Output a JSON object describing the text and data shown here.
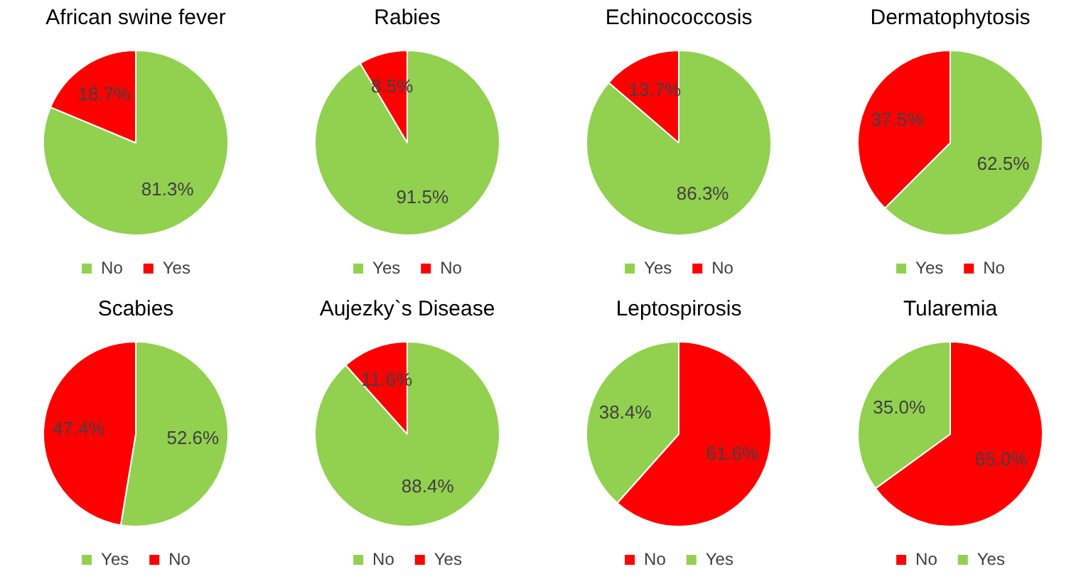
{
  "chart_data": [
    {
      "type": "pie",
      "title": "African swine fever",
      "categories": [
        "No",
        "Yes"
      ],
      "values": [
        81.3,
        18.7
      ],
      "colors": [
        "#92d050",
        "#ff0000"
      ],
      "value_labels": [
        "81.3%",
        "18.7%"
      ],
      "legend": "bottom"
    },
    {
      "type": "pie",
      "title": "Rabies",
      "categories": [
        "Yes",
        "No"
      ],
      "values": [
        91.5,
        8.5
      ],
      "colors": [
        "#92d050",
        "#ff0000"
      ],
      "value_labels": [
        "91.5%",
        "8.5%"
      ],
      "legend": "bottom"
    },
    {
      "type": "pie",
      "title": "Echinococcosis",
      "categories": [
        "Yes",
        "No"
      ],
      "values": [
        86.3,
        13.7
      ],
      "colors": [
        "#92d050",
        "#ff0000"
      ],
      "value_labels": [
        "86.3%",
        "13.7%"
      ],
      "legend": "bottom"
    },
    {
      "type": "pie",
      "title": "Dermatophytosis",
      "categories": [
        "Yes",
        "No"
      ],
      "values": [
        62.5,
        37.5
      ],
      "colors": [
        "#92d050",
        "#ff0000"
      ],
      "value_labels": [
        "62.5%",
        "37.5%"
      ],
      "legend": "bottom"
    },
    {
      "type": "pie",
      "title": "Scabies",
      "categories": [
        "Yes",
        "No"
      ],
      "values": [
        52.6,
        47.4
      ],
      "colors": [
        "#92d050",
        "#ff0000"
      ],
      "value_labels": [
        "52.6%",
        "47.4%"
      ],
      "legend": "bottom"
    },
    {
      "type": "pie",
      "title": "Aujezky`s Disease",
      "categories": [
        "No",
        "Yes"
      ],
      "values": [
        88.4,
        11.6
      ],
      "colors": [
        "#92d050",
        "#ff0000"
      ],
      "value_labels": [
        "88.4%",
        "11.6%"
      ],
      "legend": "bottom"
    },
    {
      "type": "pie",
      "title": "Leptospirosis",
      "categories": [
        "No",
        "Yes"
      ],
      "values": [
        61.6,
        38.4
      ],
      "colors": [
        "#ff0000",
        "#92d050"
      ],
      "value_labels": [
        "61.6%",
        "38.4%"
      ],
      "legend": "bottom"
    },
    {
      "type": "pie",
      "title": "Tularemia",
      "categories": [
        "No",
        "Yes"
      ],
      "values": [
        65.0,
        35.0
      ],
      "colors": [
        "#ff0000",
        "#92d050"
      ],
      "value_labels": [
        "65.0%",
        "35.0%"
      ],
      "legend": "bottom"
    }
  ]
}
